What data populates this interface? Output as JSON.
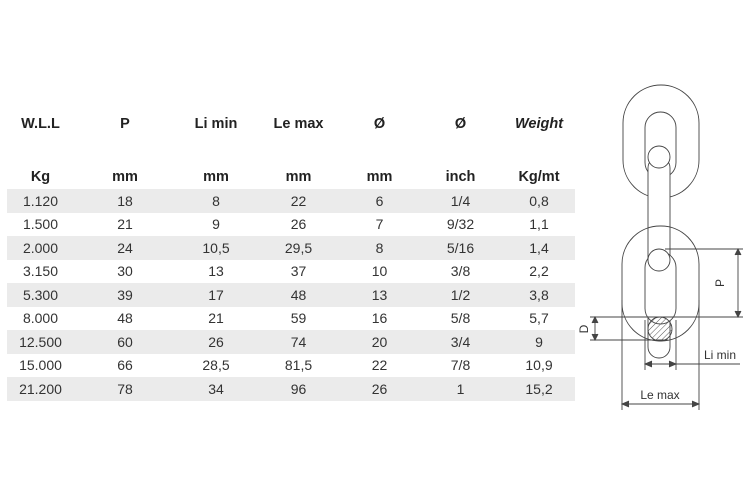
{
  "headers": [
    "W.L.L",
    "P",
    "Li min",
    "Le max",
    "Ø",
    "Ø",
    "Weight"
  ],
  "units": [
    "Kg",
    "mm",
    "mm",
    "mm",
    "mm",
    "inch",
    "Kg/mt"
  ],
  "rows": [
    [
      "1.120",
      "18",
      "8",
      "22",
      "6",
      "1/4",
      "0,8"
    ],
    [
      "1.500",
      "21",
      "9",
      "26",
      "7",
      "9/32",
      "1,1"
    ],
    [
      "2.000",
      "24",
      "10,5",
      "29,5",
      "8",
      "5/16",
      "1,4"
    ],
    [
      "3.150",
      "30",
      "13",
      "37",
      "10",
      "3/8",
      "2,2"
    ],
    [
      "5.300",
      "39",
      "17",
      "48",
      "13",
      "1/2",
      "3,8"
    ],
    [
      "8.000",
      "48",
      "21",
      "59",
      "16",
      "5/8",
      "5,7"
    ],
    [
      "12.500",
      "60",
      "26",
      "74",
      "20",
      "3/4",
      "9"
    ],
    [
      "15.000",
      "66",
      "28,5",
      "81,5",
      "22",
      "7/8",
      "10,9"
    ],
    [
      "21.200",
      "78",
      "34",
      "96",
      "26",
      "1",
      "15,2"
    ]
  ],
  "diagram": {
    "p_label": "P",
    "d_label": "D",
    "li_label": "Li min",
    "le_label": "Le max"
  }
}
